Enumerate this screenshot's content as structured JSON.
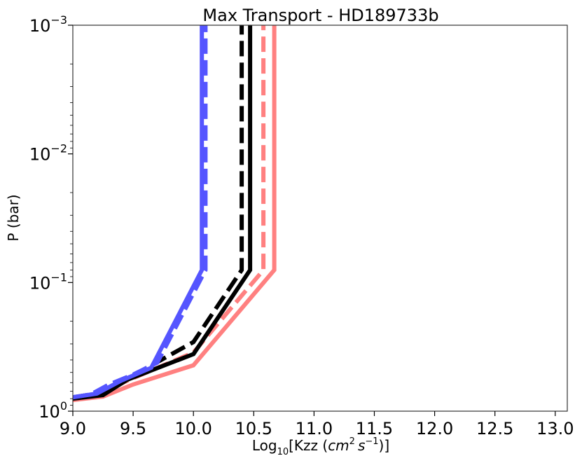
{
  "chart_data": {
    "type": "line",
    "title": "Max Transport - HD189733b",
    "xlabel": {
      "prefix": "Log",
      "sub": "10",
      "mid": "[Kzz (",
      "unit_cm": "cm",
      "cm_exp": "2",
      "unit_s": "s",
      "s_exp": "−1",
      "suffix": ")]"
    },
    "ylabel": "P (bar)",
    "xlim": [
      9.0,
      13.1
    ],
    "ylim": [
      1.0,
      0.001
    ],
    "yscale": "log",
    "y_inverted": true,
    "xticks": [
      {
        "value": 9.0,
        "label": "9.0"
      },
      {
        "value": 9.5,
        "label": "9.5"
      },
      {
        "value": 10.0,
        "label": "10.0"
      },
      {
        "value": 10.5,
        "label": "10.5"
      },
      {
        "value": 11.0,
        "label": "11.0"
      },
      {
        "value": 11.5,
        "label": "11.5"
      },
      {
        "value": 12.0,
        "label": "12.0"
      },
      {
        "value": 12.5,
        "label": "12.5"
      },
      {
        "value": 13.0,
        "label": "13.0"
      }
    ],
    "yticks": [
      {
        "value": 0.001,
        "base": "10",
        "exp": "−3"
      },
      {
        "value": 0.01,
        "base": "10",
        "exp": "−2"
      },
      {
        "value": 0.1,
        "base": "10",
        "exp": "−1"
      },
      {
        "value": 1.0,
        "base": "10",
        "exp": "0"
      }
    ],
    "grid": false,
    "series": [
      {
        "color": "#ff8080",
        "dash": "solid",
        "width": 6,
        "x": [
          9.0,
          9.25,
          9.5,
          10.0,
          10.67,
          10.67
        ],
        "y": [
          0.82,
          0.77,
          0.62,
          0.44,
          0.08,
          0.001
        ]
      },
      {
        "color": "#ff8080",
        "dash": "dashed",
        "width": 6,
        "x": [
          9.0,
          9.2,
          9.45,
          10.0,
          10.58,
          10.58
        ],
        "y": [
          0.78,
          0.75,
          0.58,
          0.35,
          0.08,
          0.001
        ]
      },
      {
        "color": "#000000",
        "dash": "solid",
        "width": 6,
        "x": [
          9.0,
          9.25,
          9.45,
          10.0,
          10.47,
          10.47
        ],
        "y": [
          0.8,
          0.75,
          0.57,
          0.36,
          0.08,
          0.001
        ]
      },
      {
        "color": "#000000",
        "dash": "dashed",
        "width": 6,
        "x": [
          9.0,
          9.2,
          9.45,
          10.0,
          10.4,
          10.4
        ],
        "y": [
          0.78,
          0.73,
          0.56,
          0.29,
          0.08,
          0.001
        ]
      },
      {
        "color": "#5555ff",
        "dash": "solid",
        "width": 6,
        "x": [
          9.0,
          9.2,
          9.4,
          9.65,
          10.07,
          10.07
        ],
        "y": [
          0.78,
          0.73,
          0.58,
          0.46,
          0.08,
          0.001
        ]
      },
      {
        "color": "#5555ff",
        "dash": "dashed",
        "width": 6,
        "x": [
          9.0,
          9.15,
          9.3,
          9.5,
          9.7,
          10.1,
          10.1
        ],
        "y": [
          0.78,
          0.74,
          0.62,
          0.52,
          0.42,
          0.08,
          0.001
        ]
      }
    ]
  }
}
